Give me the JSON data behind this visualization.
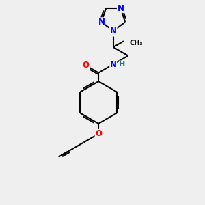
{
  "bg_color": "#efefef",
  "bond_color": "#000000",
  "bond_width": 1.5,
  "atom_colors": {
    "N": "#0000ff",
    "O": "#ff0000",
    "H": "#008080"
  },
  "font_size": 8.5
}
